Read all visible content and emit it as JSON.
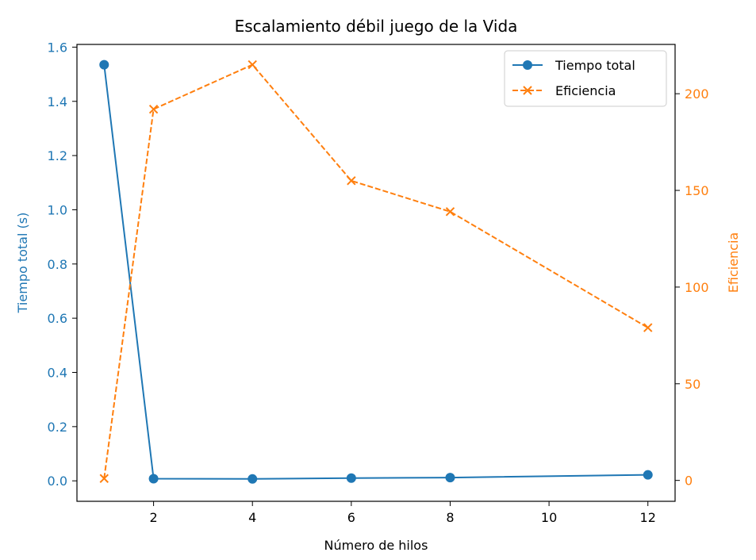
{
  "chart_data": {
    "type": "line",
    "title": "Escalamiento débil juego de la Vida",
    "xlabel": "Número de hilos",
    "ylabel_left": "Tiempo total (s)",
    "ylabel_right": "Eficiencia",
    "x": [
      1,
      2,
      4,
      6,
      8,
      12
    ],
    "xlim": [
      0.45,
      12.55
    ],
    "ylim_left": [
      -0.0755,
      1.61
    ],
    "ylim_right": [
      -10.8,
      225.5
    ],
    "x_ticks": [
      2,
      4,
      6,
      8,
      10,
      12
    ],
    "x_tick_labels": [
      "2",
      "4",
      "6",
      "8",
      "10",
      "12"
    ],
    "y_left_ticks": [
      0.0,
      0.2,
      0.4,
      0.6,
      0.8,
      1.0,
      1.2,
      1.4,
      1.6
    ],
    "y_left_tick_labels": [
      "0.0",
      "0.2",
      "0.4",
      "0.6",
      "0.8",
      "1.0",
      "1.2",
      "1.4",
      "1.6"
    ],
    "y_right_ticks": [
      0,
      50,
      100,
      150,
      200
    ],
    "y_right_tick_labels": [
      "0",
      "50",
      "100",
      "150",
      "200"
    ],
    "series": [
      {
        "name": "Tiempo total",
        "axis": "left",
        "color": "#1f77b4",
        "marker": "circle",
        "linestyle": "solid",
        "values": [
          1.535,
          0.008,
          0.007,
          0.01,
          0.012,
          0.022
        ]
      },
      {
        "name": "Eficiencia",
        "axis": "right",
        "color": "#ff7f0e",
        "marker": "x",
        "linestyle": "dashed",
        "values": [
          1,
          192,
          215,
          155,
          139,
          79
        ]
      }
    ],
    "legend_position": "top-right",
    "grid": false
  }
}
